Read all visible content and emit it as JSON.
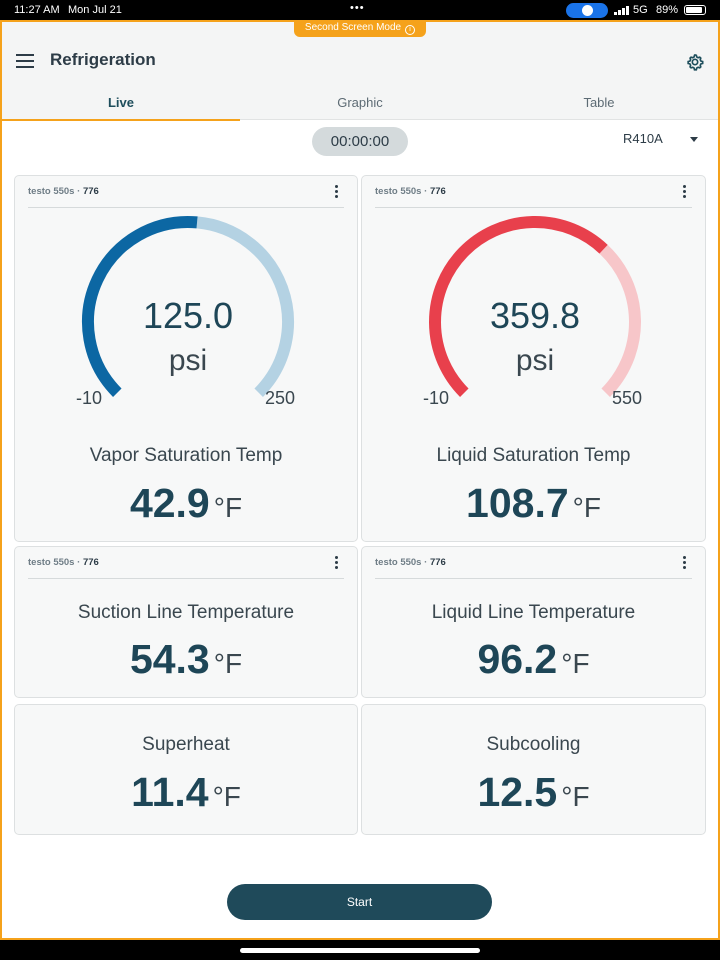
{
  "status_bar": {
    "time": "11:27 AM",
    "date": "Mon Jul 21",
    "network": "5G",
    "battery": "89%"
  },
  "second_screen_mode": {
    "label": "Second Screen Mode",
    "info_glyph": "i"
  },
  "header": {
    "title": "Refrigeration",
    "icons": [
      "menu-icon",
      "gear-icon"
    ]
  },
  "tabs": [
    {
      "label": "Live"
    },
    {
      "label": "Graphic"
    },
    {
      "label": "Table"
    }
  ],
  "toolbar": {
    "timer": "00:00:00",
    "refrigerant": "R410A"
  },
  "gauges": [
    {
      "device": "testo 550s",
      "separator": " · ",
      "serial": "776",
      "value": "125.0",
      "unit": "psi",
      "min": "-10",
      "max": "250",
      "min_value": -10,
      "max_value": 250,
      "value_num": 125.0,
      "label": "Vapor Saturation Temp",
      "temp": "42.9",
      "temp_unit": "°F",
      "color_active": "#0c67a3",
      "color_track": "#b4d2e3"
    },
    {
      "device": "testo 550s",
      "separator": " · ",
      "serial": "776",
      "value": "359.8",
      "unit": "psi",
      "min": "-10",
      "max": "550",
      "min_value": -10,
      "max_value": 550,
      "value_num": 359.8,
      "label": "Liquid Saturation Temp",
      "temp": "108.7",
      "temp_unit": "°F",
      "color_active": "#e8404c",
      "color_track": "#f7c6c9"
    }
  ],
  "sensors": [
    {
      "device": "testo 550s",
      "separator": " · ",
      "serial": "776",
      "label": "Suction Line Temperature",
      "value": "54.3",
      "unit": "°F"
    },
    {
      "device": "testo 550s",
      "separator": " · ",
      "serial": "776",
      "label": "Liquid Line Temperature",
      "value": "96.2",
      "unit": "°F"
    }
  ],
  "calculated": [
    {
      "label": "Superheat",
      "value": "11.4",
      "unit": "°F"
    },
    {
      "label": "Subcooling",
      "value": "12.5",
      "unit": "°F"
    }
  ],
  "start_label": "Start",
  "colors": {
    "accent": "#f5a21b",
    "primary": "#1f4a5a"
  }
}
